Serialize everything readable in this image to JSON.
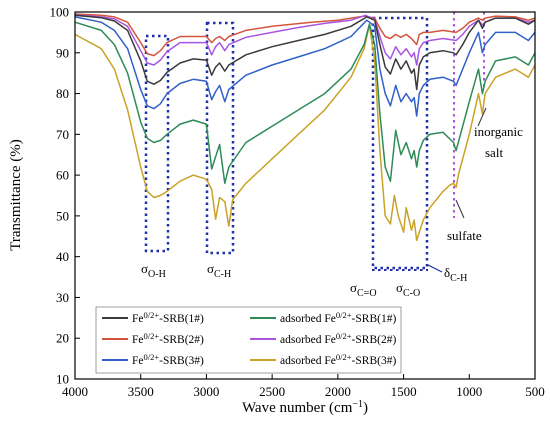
{
  "chart_data": {
    "type": "line",
    "xlabel": "Wave number (cm⁻¹)",
    "ylabel": "Transmittance (%)",
    "xlim": [
      4000,
      500
    ],
    "ylim": [
      10,
      100
    ],
    "x_reversed": true,
    "x_ticks": [
      4000,
      3500,
      3000,
      2500,
      2000,
      1500,
      1000,
      500
    ],
    "y_ticks": [
      10,
      20,
      30,
      40,
      50,
      60,
      70,
      80,
      90,
      100
    ],
    "grid": false,
    "legend_position": "bottom-left",
    "series": [
      {
        "name": "Fe0/2+-SRB(1#)",
        "legend_parts": [
          "Fe",
          "0/2+",
          "-SRB(1#)"
        ],
        "color": "#3a3a3a",
        "points": [
          [
            4000,
            99.2
          ],
          [
            3800,
            98.6
          ],
          [
            3700,
            97.8
          ],
          [
            3600,
            95.5
          ],
          [
            3500,
            88
          ],
          [
            3450,
            83
          ],
          [
            3400,
            82.3
          ],
          [
            3350,
            83.2
          ],
          [
            3300,
            85.2
          ],
          [
            3200,
            87.5
          ],
          [
            3100,
            88.5
          ],
          [
            3000,
            88.2
          ],
          [
            2960,
            84.5
          ],
          [
            2930,
            86.5
          ],
          [
            2900,
            87.5
          ],
          [
            2860,
            85.5
          ],
          [
            2830,
            87
          ],
          [
            2700,
            89.5
          ],
          [
            2500,
            91.5
          ],
          [
            2300,
            93
          ],
          [
            2100,
            94.5
          ],
          [
            1900,
            96.5
          ],
          [
            1780,
            98.8
          ],
          [
            1720,
            98
          ],
          [
            1680,
            92
          ],
          [
            1640,
            86.5
          ],
          [
            1600,
            84.8
          ],
          [
            1560,
            88.5
          ],
          [
            1520,
            86
          ],
          [
            1480,
            88
          ],
          [
            1440,
            85
          ],
          [
            1420,
            86
          ],
          [
            1400,
            81
          ],
          [
            1380,
            87
          ],
          [
            1350,
            89
          ],
          [
            1300,
            90
          ],
          [
            1200,
            90.5
          ],
          [
            1120,
            90
          ],
          [
            1100,
            89.5
          ],
          [
            1050,
            92
          ],
          [
            1000,
            95
          ],
          [
            930,
            98
          ],
          [
            900,
            96
          ],
          [
            880,
            97.5
          ],
          [
            800,
            98.5
          ],
          [
            650,
            98.5
          ],
          [
            550,
            97
          ],
          [
            500,
            98
          ]
        ]
      },
      {
        "name": "Fe0/2+-SRB(2#)",
        "legend_parts": [
          "Fe",
          "0/2+",
          "-SRB(2#)"
        ],
        "color": "#d4553d",
        "points": [
          [
            4000,
            99.5
          ],
          [
            3800,
            99.2
          ],
          [
            3700,
            98.8
          ],
          [
            3600,
            97.5
          ],
          [
            3500,
            92.5
          ],
          [
            3450,
            89.8
          ],
          [
            3400,
            89.3
          ],
          [
            3350,
            90.5
          ],
          [
            3300,
            92.5
          ],
          [
            3200,
            94
          ],
          [
            3000,
            94
          ],
          [
            2960,
            92.5
          ],
          [
            2930,
            93.5
          ],
          [
            2900,
            94
          ],
          [
            2860,
            93
          ],
          [
            2830,
            94
          ],
          [
            2700,
            95.5
          ],
          [
            2500,
            96.5
          ],
          [
            2200,
            97.5
          ],
          [
            2000,
            98
          ],
          [
            1800,
            99
          ],
          [
            1720,
            98.5
          ],
          [
            1680,
            96
          ],
          [
            1640,
            94
          ],
          [
            1600,
            93.5
          ],
          [
            1560,
            94.5
          ],
          [
            1520,
            93.8
          ],
          [
            1480,
            94.5
          ],
          [
            1440,
            93.5
          ],
          [
            1400,
            92
          ],
          [
            1380,
            94.5
          ],
          [
            1350,
            95
          ],
          [
            1300,
            95
          ],
          [
            1200,
            95.5
          ],
          [
            1100,
            95
          ],
          [
            1050,
            96
          ],
          [
            1000,
            97.5
          ],
          [
            930,
            98.5
          ],
          [
            900,
            98
          ],
          [
            880,
            98.5
          ],
          [
            800,
            99
          ],
          [
            650,
            98.8
          ],
          [
            550,
            98
          ],
          [
            500,
            98.5
          ]
        ]
      },
      {
        "name": "Fe0/2+-SRB(3#)",
        "legend_parts": [
          "Fe",
          "0/2+",
          "-SRB(3#)"
        ],
        "color": "#3060c8",
        "points": [
          [
            4000,
            98.8
          ],
          [
            3800,
            97.5
          ],
          [
            3700,
            95.5
          ],
          [
            3600,
            91
          ],
          [
            3500,
            81
          ],
          [
            3450,
            77
          ],
          [
            3400,
            76.3
          ],
          [
            3350,
            77.5
          ],
          [
            3300,
            80
          ],
          [
            3200,
            82.5
          ],
          [
            3100,
            83.5
          ],
          [
            3000,
            83
          ],
          [
            2960,
            78.5
          ],
          [
            2930,
            80.5
          ],
          [
            2900,
            82
          ],
          [
            2860,
            78
          ],
          [
            2830,
            81
          ],
          [
            2700,
            84.5
          ],
          [
            2500,
            87
          ],
          [
            2300,
            89
          ],
          [
            2100,
            91
          ],
          [
            1900,
            94
          ],
          [
            1780,
            98
          ],
          [
            1720,
            96.5
          ],
          [
            1680,
            86
          ],
          [
            1640,
            80
          ],
          [
            1600,
            77
          ],
          [
            1560,
            82
          ],
          [
            1520,
            78
          ],
          [
            1480,
            80
          ],
          [
            1440,
            78
          ],
          [
            1420,
            79
          ],
          [
            1400,
            74.5
          ],
          [
            1380,
            80
          ],
          [
            1350,
            82
          ],
          [
            1300,
            83.5
          ],
          [
            1200,
            84
          ],
          [
            1120,
            83
          ],
          [
            1100,
            82
          ],
          [
            1050,
            86
          ],
          [
            1000,
            90
          ],
          [
            930,
            95
          ],
          [
            900,
            90
          ],
          [
            880,
            92
          ],
          [
            800,
            95
          ],
          [
            650,
            95
          ],
          [
            550,
            93
          ],
          [
            500,
            95
          ]
        ]
      },
      {
        "name": "adsorbed Fe0/2+-SRB(1#)",
        "legend_parts": [
          "adsorbed Fe",
          "0/2+",
          "-SRB(1#)"
        ],
        "color": "#2e8b57",
        "points": [
          [
            4000,
            97.5
          ],
          [
            3800,
            95.5
          ],
          [
            3700,
            92
          ],
          [
            3600,
            85
          ],
          [
            3500,
            73
          ],
          [
            3450,
            69
          ],
          [
            3400,
            68
          ],
          [
            3350,
            68.5
          ],
          [
            3300,
            70
          ],
          [
            3200,
            72.5
          ],
          [
            3100,
            73.5
          ],
          [
            3000,
            72.5
          ],
          [
            2960,
            61.5
          ],
          [
            2930,
            64.5
          ],
          [
            2900,
            67.5
          ],
          [
            2860,
            58
          ],
          [
            2830,
            62
          ],
          [
            2700,
            68
          ],
          [
            2500,
            72
          ],
          [
            2300,
            76
          ],
          [
            2100,
            80
          ],
          [
            1900,
            86
          ],
          [
            1800,
            92
          ],
          [
            1760,
            97
          ],
          [
            1720,
            92
          ],
          [
            1680,
            75
          ],
          [
            1640,
            62
          ],
          [
            1600,
            58.5
          ],
          [
            1560,
            71
          ],
          [
            1520,
            65
          ],
          [
            1480,
            68
          ],
          [
            1440,
            64
          ],
          [
            1420,
            66
          ],
          [
            1400,
            62
          ],
          [
            1380,
            66
          ],
          [
            1350,
            68.5
          ],
          [
            1300,
            70
          ],
          [
            1200,
            70.5
          ],
          [
            1120,
            68
          ],
          [
            1100,
            66
          ],
          [
            1050,
            72
          ],
          [
            1000,
            78
          ],
          [
            930,
            86
          ],
          [
            900,
            80
          ],
          [
            880,
            83
          ],
          [
            800,
            88
          ],
          [
            650,
            89
          ],
          [
            550,
            87
          ],
          [
            500,
            90
          ]
        ]
      },
      {
        "name": "adsorbed Fe0/2+-SRB(2#)",
        "legend_parts": [
          "adsorbed Fe",
          "0/2+",
          "-SRB(2#)"
        ],
        "color": "#a855e0",
        "points": [
          [
            4000,
            99.3
          ],
          [
            3800,
            98.8
          ],
          [
            3700,
            98.3
          ],
          [
            3600,
            96.5
          ],
          [
            3500,
            90.5
          ],
          [
            3450,
            87.5
          ],
          [
            3400,
            87
          ],
          [
            3350,
            88.2
          ],
          [
            3300,
            90.3
          ],
          [
            3200,
            92.5
          ],
          [
            3000,
            92.5
          ],
          [
            2960,
            89.5
          ],
          [
            2930,
            91.5
          ],
          [
            2900,
            92.5
          ],
          [
            2860,
            90.5
          ],
          [
            2830,
            92
          ],
          [
            2700,
            93.8
          ],
          [
            2500,
            95
          ],
          [
            2300,
            96.2
          ],
          [
            2100,
            97.2
          ],
          [
            1900,
            98
          ],
          [
            1790,
            99.2
          ],
          [
            1720,
            98.2
          ],
          [
            1680,
            94
          ],
          [
            1640,
            90
          ],
          [
            1600,
            88.5
          ],
          [
            1560,
            91.5
          ],
          [
            1520,
            89.5
          ],
          [
            1480,
            91
          ],
          [
            1440,
            89
          ],
          [
            1420,
            90
          ],
          [
            1400,
            87
          ],
          [
            1380,
            91
          ],
          [
            1350,
            92.5
          ],
          [
            1300,
            93
          ],
          [
            1200,
            93.5
          ],
          [
            1100,
            93
          ],
          [
            1050,
            94.5
          ],
          [
            1000,
            96.5
          ],
          [
            930,
            98
          ],
          [
            900,
            96.8
          ],
          [
            880,
            97.5
          ],
          [
            800,
            98.5
          ],
          [
            650,
            98.5
          ],
          [
            550,
            97.5
          ],
          [
            500,
            98
          ]
        ]
      },
      {
        "name": "adsorbed Fe0/2+-SRB(3#)",
        "legend_parts": [
          "adsorbed Fe",
          "0/2+",
          "-SRB(3#)"
        ],
        "color": "#c9a227",
        "points": [
          [
            4000,
            94.5
          ],
          [
            3800,
            91
          ],
          [
            3700,
            86
          ],
          [
            3600,
            76
          ],
          [
            3500,
            62
          ],
          [
            3450,
            56
          ],
          [
            3400,
            54.5
          ],
          [
            3350,
            55
          ],
          [
            3300,
            56
          ],
          [
            3200,
            58.5
          ],
          [
            3100,
            60
          ],
          [
            3000,
            59
          ],
          [
            2960,
            56.5
          ],
          [
            2930,
            49.2
          ],
          [
            2900,
            54.5
          ],
          [
            2860,
            53.5
          ],
          [
            2830,
            47.5
          ],
          [
            2800,
            54
          ],
          [
            2700,
            58
          ],
          [
            2500,
            64
          ],
          [
            2300,
            70
          ],
          [
            2100,
            76
          ],
          [
            1900,
            84
          ],
          [
            1800,
            91
          ],
          [
            1760,
            96.8
          ],
          [
            1720,
            88
          ],
          [
            1680,
            66
          ],
          [
            1640,
            50
          ],
          [
            1600,
            48
          ],
          [
            1570,
            55
          ],
          [
            1540,
            50
          ],
          [
            1500,
            46
          ],
          [
            1480,
            52
          ],
          [
            1440,
            46.5
          ],
          [
            1420,
            49
          ],
          [
            1400,
            44
          ],
          [
            1380,
            46
          ],
          [
            1350,
            49
          ],
          [
            1300,
            52
          ],
          [
            1200,
            56
          ],
          [
            1150,
            57.5
          ],
          [
            1120,
            58
          ],
          [
            1100,
            57
          ],
          [
            1080,
            60.5
          ],
          [
            1050,
            64
          ],
          [
            1000,
            70
          ],
          [
            930,
            80
          ],
          [
            900,
            75
          ],
          [
            880,
            80
          ],
          [
            800,
            84
          ],
          [
            650,
            86
          ],
          [
            550,
            84
          ],
          [
            500,
            87
          ]
        ]
      }
    ],
    "annotations": [
      {
        "base": "σ",
        "sub": "O-H"
      },
      {
        "base": "σ",
        "sub": "C-H"
      },
      {
        "base": "σ",
        "sub": "C=O"
      },
      {
        "base": "σ",
        "sub": "C-O"
      },
      {
        "base": "δ",
        "sub": "C-H"
      },
      {
        "text": "inorganic"
      },
      {
        "text": "salt"
      },
      {
        "text": "sulfate"
      }
    ]
  }
}
